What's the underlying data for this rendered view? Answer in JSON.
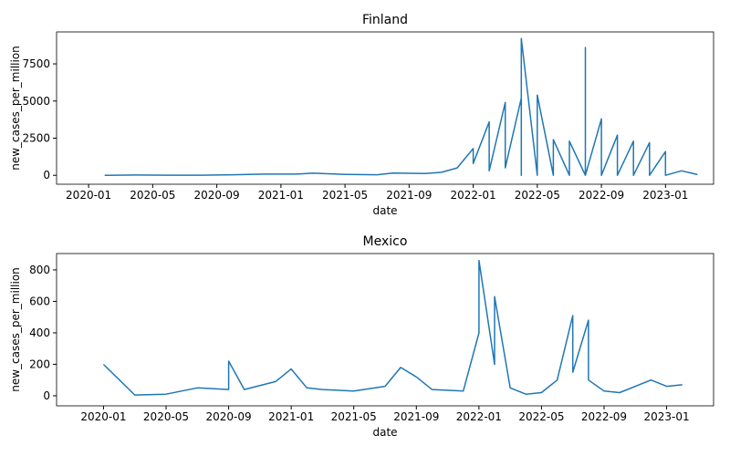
{
  "chart_data": [
    {
      "type": "line",
      "title": "Finland",
      "xlabel": "date",
      "ylabel": "new_cases_per_million",
      "xlim": [
        "2019-11",
        "2023-04"
      ],
      "xticks": [
        "2020-01",
        "2020-05",
        "2020-09",
        "2021-01",
        "2021-05",
        "2021-09",
        "2022-01",
        "2022-05",
        "2022-09",
        "2023-01"
      ],
      "ylim": [
        -600,
        9650
      ],
      "yticks": [
        0,
        2500,
        5000,
        7500
      ],
      "x": [
        "2020-02",
        "2020-04",
        "2020-06",
        "2020-08",
        "2020-10",
        "2020-12",
        "2021-02",
        "2021-03",
        "2021-05",
        "2021-07",
        "2021-08",
        "2021-10",
        "2021-11",
        "2021-12",
        "2022-01",
        "2022-01",
        "2022-02",
        "2022-02",
        "2022-03",
        "2022-03",
        "2022-04",
        "2022-04",
        "2022-04",
        "2022-05",
        "2022-05",
        "2022-06",
        "2022-06",
        "2022-07",
        "2022-07",
        "2022-08",
        "2022-08",
        "2022-08",
        "2022-09",
        "2022-09",
        "2022-10",
        "2022-10",
        "2022-11",
        "2022-11",
        "2022-12",
        "2022-12",
        "2023-01",
        "2023-01",
        "2023-02",
        "2023-03"
      ],
      "series": [
        {
          "name": "new_cases_per_million",
          "color": "#1f77b4",
          "values": [
            0,
            20,
            5,
            5,
            40,
            80,
            80,
            140,
            60,
            40,
            150,
            120,
            200,
            500,
            1800,
            800,
            3600,
            300,
            4900,
            500,
            5200,
            0,
            9200,
            0,
            5400,
            0,
            2400,
            0,
            2300,
            0,
            8600,
            0,
            3800,
            0,
            2700,
            0,
            2300,
            0,
            2200,
            0,
            1600,
            0,
            300,
            50
          ]
        }
      ]
    },
    {
      "type": "line",
      "title": "Mexico",
      "xlabel": "date",
      "ylabel": "new_cases_per_million",
      "xlim": [
        "2019-10",
        "2023-04"
      ],
      "xticks": [
        "2020-01",
        "2020-05",
        "2020-09",
        "2021-01",
        "2021-05",
        "2021-09",
        "2022-01",
        "2022-05",
        "2022-09",
        "2023-01"
      ],
      "ylim": [
        -64,
        904
      ],
      "yticks": [
        0,
        200,
        400,
        600,
        800
      ],
      "x": [
        "2020-01",
        "2020-03",
        "2020-05",
        "2020-07",
        "2020-09",
        "2020-09",
        "2020-10",
        "2020-12",
        "2021-01",
        "2021-02",
        "2021-03",
        "2021-05",
        "2021-07",
        "2021-08",
        "2021-09",
        "2021-10",
        "2021-12",
        "2022-01",
        "2022-01",
        "2022-02",
        "2022-02",
        "2022-03",
        "2022-04",
        "2022-05",
        "2022-06",
        "2022-07",
        "2022-07",
        "2022-08",
        "2022-08",
        "2022-09",
        "2022-10",
        "2022-12",
        "2023-01",
        "2023-02"
      ],
      "series": [
        {
          "name": "new_cases_per_million",
          "color": "#1f77b4",
          "values": [
            200,
            5,
            10,
            50,
            40,
            220,
            40,
            90,
            170,
            50,
            40,
            30,
            60,
            180,
            120,
            40,
            30,
            400,
            860,
            200,
            630,
            50,
            10,
            20,
            100,
            510,
            150,
            480,
            100,
            30,
            20,
            100,
            60,
            70
          ]
        }
      ]
    }
  ]
}
